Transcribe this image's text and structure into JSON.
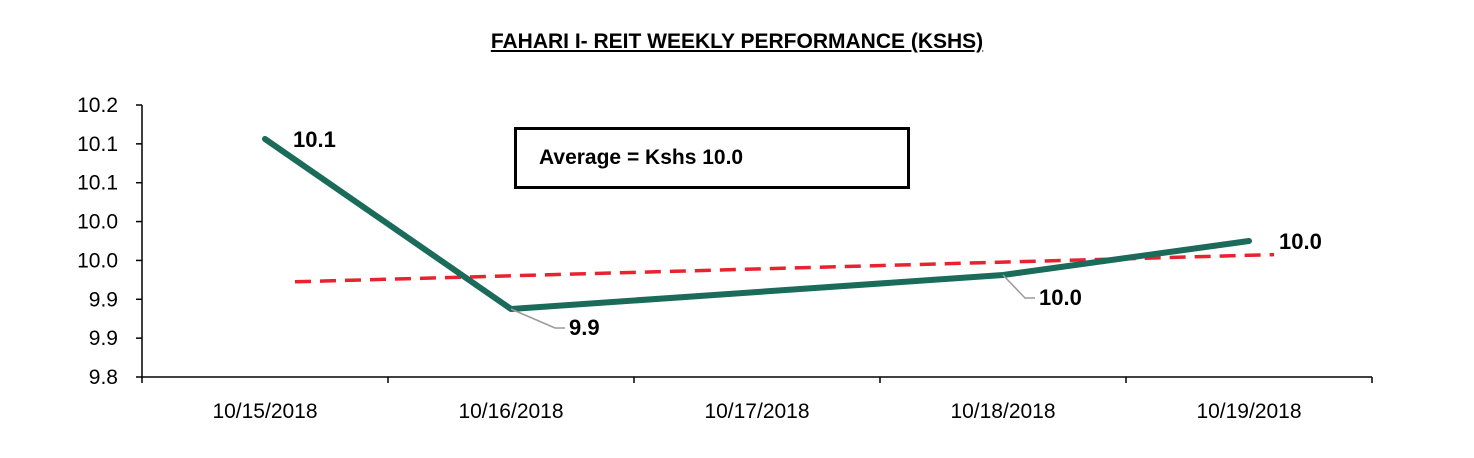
{
  "chart_data": {
    "type": "line",
    "title": "FAHARI I- REIT WEEKLY PERFORMANCE (KSHS)",
    "categories": [
      "10/15/2018",
      "10/16/2018",
      "10/17/2018",
      "10/18/2018",
      "10/19/2018"
    ],
    "y_tick_labels": [
      "9.8",
      "9.9",
      "9.9",
      "10.0",
      "10.0",
      "10.1",
      "10.1",
      "10.2"
    ],
    "ylim": [
      9.8,
      10.2
    ],
    "grid": false,
    "series": [
      {
        "values": [
          10.15,
          9.9,
          null,
          9.95,
          10.0
        ],
        "data_labels": [
          "10.1",
          "9.9",
          "",
          "10.0",
          "10.0"
        ],
        "color": "#1a6b5a",
        "style": "solid"
      },
      {
        "values": [
          9.94,
          null,
          null,
          null,
          9.98
        ],
        "color": "#e8232f",
        "style": "dashed",
        "kind": "trendline"
      }
    ],
    "annotation": "Average = Kshs 10.0"
  }
}
